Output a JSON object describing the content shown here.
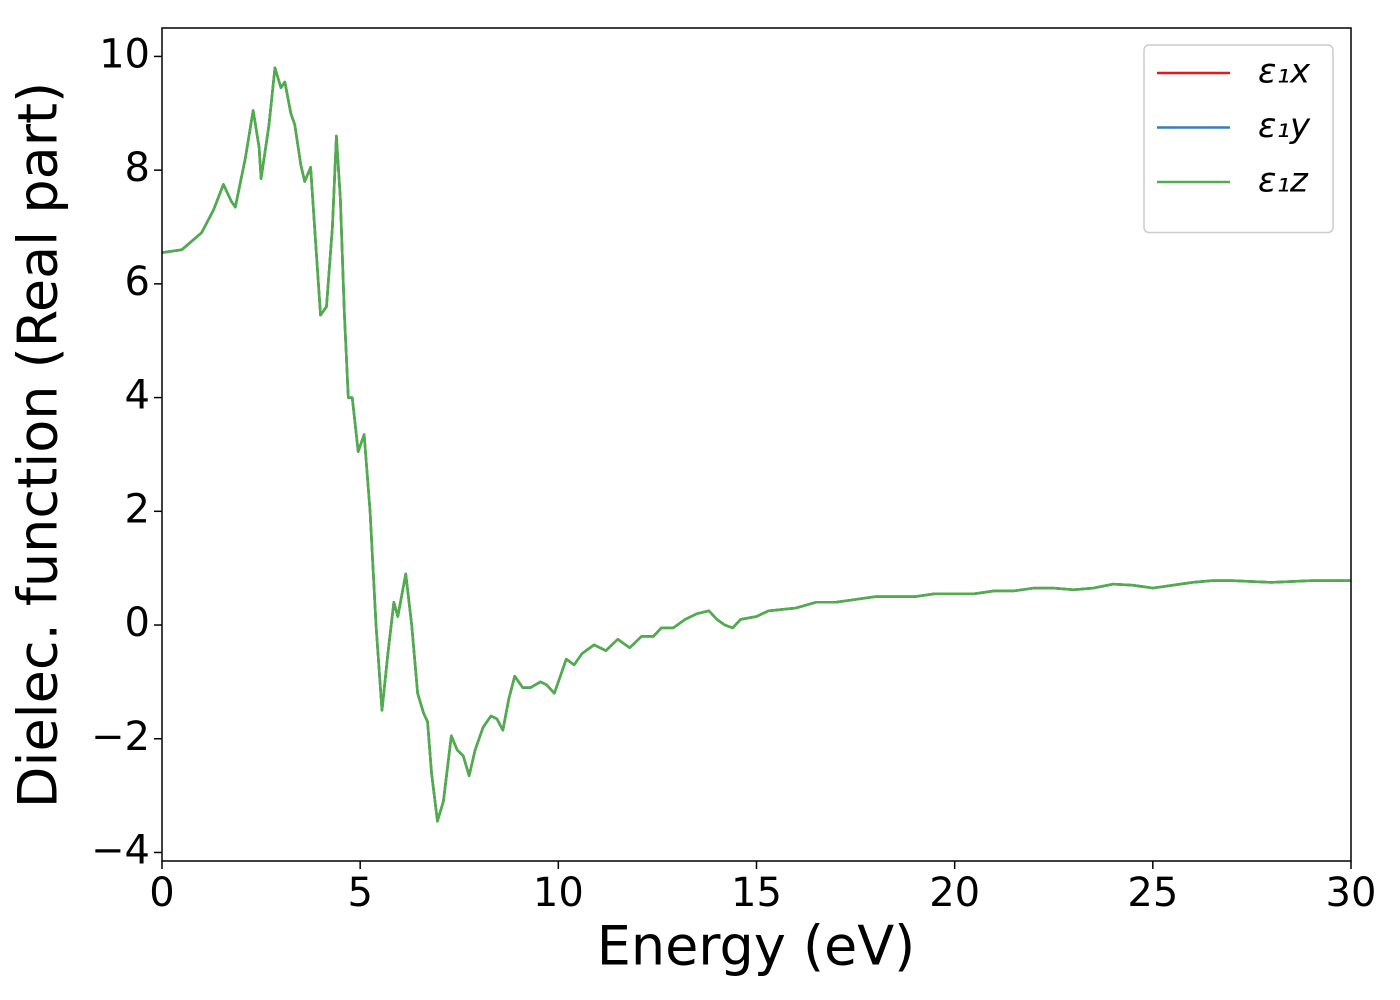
{
  "chart_data": {
    "type": "line",
    "xlabel": "Energy (eV)",
    "ylabel": "Dielec. function (Real part)",
    "x": [
      0,
      0.5,
      1.0,
      1.3,
      1.55,
      1.75,
      1.85,
      2.1,
      2.3,
      2.45,
      2.5,
      2.7,
      2.85,
      3.0,
      3.1,
      3.25,
      3.35,
      3.5,
      3.6,
      3.75,
      3.85,
      4.0,
      4.15,
      4.3,
      4.4,
      4.5,
      4.6,
      4.7,
      4.8,
      4.95,
      5.1,
      5.25,
      5.4,
      5.55,
      5.7,
      5.85,
      5.95,
      6.15,
      6.3,
      6.45,
      6.6,
      6.7,
      6.8,
      6.95,
      7.1,
      7.3,
      7.45,
      7.6,
      7.75,
      7.9,
      8.1,
      8.3,
      8.45,
      8.6,
      8.75,
      8.9,
      9.1,
      9.3,
      9.55,
      9.7,
      9.9,
      10.0,
      10.2,
      10.4,
      10.6,
      10.9,
      11.2,
      11.5,
      11.8,
      12.1,
      12.4,
      12.6,
      12.9,
      13.2,
      13.5,
      13.8,
      14.0,
      14.2,
      14.4,
      14.6,
      15.0,
      15.3,
      16.0,
      16.5,
      17.0,
      17.5,
      18.0,
      18.5,
      19.0,
      19.5,
      20.0,
      20.5,
      21.0,
      21.5,
      22.0,
      22.5,
      23.0,
      23.5,
      24.0,
      24.5,
      25.0,
      25.5,
      26.0,
      26.5,
      27.0,
      28.0,
      29.0,
      30.0
    ],
    "series": [
      {
        "name": "ε₁x",
        "color": "#e41a1c",
        "values": [
          6.55,
          6.6,
          6.9,
          7.3,
          7.75,
          7.45,
          7.35,
          8.2,
          9.05,
          8.4,
          7.85,
          8.8,
          9.8,
          9.45,
          9.55,
          9.0,
          8.8,
          8.1,
          7.8,
          8.05,
          7.0,
          5.45,
          5.6,
          7.0,
          8.6,
          7.5,
          5.5,
          4.0,
          4.0,
          3.05,
          3.35,
          2.0,
          0.0,
          -1.5,
          -0.5,
          0.4,
          0.15,
          0.9,
          0.0,
          -1.2,
          -1.55,
          -1.7,
          -2.6,
          -3.45,
          -3.1,
          -1.95,
          -2.2,
          -2.3,
          -2.65,
          -2.2,
          -1.8,
          -1.6,
          -1.65,
          -1.85,
          -1.3,
          -0.9,
          -1.1,
          -1.1,
          -1.0,
          -1.05,
          -1.2,
          -1.0,
          -0.6,
          -0.7,
          -0.5,
          -0.35,
          -0.45,
          -0.25,
          -0.4,
          -0.2,
          -0.2,
          -0.05,
          -0.05,
          0.1,
          0.2,
          0.25,
          0.1,
          0.0,
          -0.05,
          0.1,
          0.15,
          0.25,
          0.3,
          0.4,
          0.4,
          0.45,
          0.5,
          0.5,
          0.5,
          0.55,
          0.55,
          0.55,
          0.6,
          0.6,
          0.65,
          0.65,
          0.62,
          0.65,
          0.72,
          0.7,
          0.65,
          0.7,
          0.75,
          0.78,
          0.78,
          0.75,
          0.78,
          0.78
        ]
      },
      {
        "name": "ε₁y",
        "color": "#377eb8",
        "values": [
          6.55,
          6.6,
          6.9,
          7.3,
          7.75,
          7.45,
          7.35,
          8.2,
          9.05,
          8.4,
          7.85,
          8.8,
          9.8,
          9.45,
          9.55,
          9.0,
          8.8,
          8.1,
          7.8,
          8.05,
          7.0,
          5.45,
          5.6,
          7.0,
          8.6,
          7.5,
          5.5,
          4.0,
          4.0,
          3.05,
          3.35,
          2.0,
          0.0,
          -1.5,
          -0.5,
          0.4,
          0.15,
          0.9,
          0.0,
          -1.2,
          -1.55,
          -1.7,
          -2.6,
          -3.45,
          -3.1,
          -1.95,
          -2.2,
          -2.3,
          -2.65,
          -2.2,
          -1.8,
          -1.6,
          -1.65,
          -1.85,
          -1.3,
          -0.9,
          -1.1,
          -1.1,
          -1.0,
          -1.05,
          -1.2,
          -1.0,
          -0.6,
          -0.7,
          -0.5,
          -0.35,
          -0.45,
          -0.25,
          -0.4,
          -0.2,
          -0.2,
          -0.05,
          -0.05,
          0.1,
          0.2,
          0.25,
          0.1,
          0.0,
          -0.05,
          0.1,
          0.15,
          0.25,
          0.3,
          0.4,
          0.4,
          0.45,
          0.5,
          0.5,
          0.5,
          0.55,
          0.55,
          0.55,
          0.6,
          0.6,
          0.65,
          0.65,
          0.62,
          0.65,
          0.72,
          0.7,
          0.65,
          0.7,
          0.75,
          0.78,
          0.78,
          0.75,
          0.78,
          0.78
        ]
      },
      {
        "name": "ε₁z",
        "color": "#4daf4a",
        "values": [
          6.55,
          6.6,
          6.9,
          7.3,
          7.75,
          7.45,
          7.35,
          8.2,
          9.05,
          8.4,
          7.85,
          8.8,
          9.8,
          9.45,
          9.55,
          9.0,
          8.8,
          8.1,
          7.8,
          8.05,
          7.0,
          5.45,
          5.6,
          7.0,
          8.6,
          7.5,
          5.5,
          4.0,
          4.0,
          3.05,
          3.35,
          2.0,
          0.0,
          -1.5,
          -0.5,
          0.4,
          0.15,
          0.9,
          0.0,
          -1.2,
          -1.55,
          -1.7,
          -2.6,
          -3.45,
          -3.1,
          -1.95,
          -2.2,
          -2.3,
          -2.65,
          -2.2,
          -1.8,
          -1.6,
          -1.65,
          -1.85,
          -1.3,
          -0.9,
          -1.1,
          -1.1,
          -1.0,
          -1.05,
          -1.2,
          -1.0,
          -0.6,
          -0.7,
          -0.5,
          -0.35,
          -0.45,
          -0.25,
          -0.4,
          -0.2,
          -0.2,
          -0.05,
          -0.05,
          0.1,
          0.2,
          0.25,
          0.1,
          0.0,
          -0.05,
          0.1,
          0.15,
          0.25,
          0.3,
          0.4,
          0.4,
          0.45,
          0.5,
          0.5,
          0.5,
          0.55,
          0.55,
          0.55,
          0.6,
          0.6,
          0.65,
          0.65,
          0.62,
          0.65,
          0.72,
          0.7,
          0.65,
          0.7,
          0.75,
          0.78,
          0.78,
          0.75,
          0.78,
          0.78
        ]
      }
    ],
    "xlim": [
      0,
      30
    ],
    "xticks": [
      0,
      5,
      10,
      15,
      20,
      25,
      30
    ],
    "ylim": [
      -4.15,
      10.5
    ],
    "yticks": [
      {
        "value": -4,
        "label": "−4"
      },
      {
        "value": -2,
        "label": "−2"
      },
      0,
      2,
      4,
      6,
      8,
      10
    ],
    "grid": false,
    "legend": "upper right"
  }
}
